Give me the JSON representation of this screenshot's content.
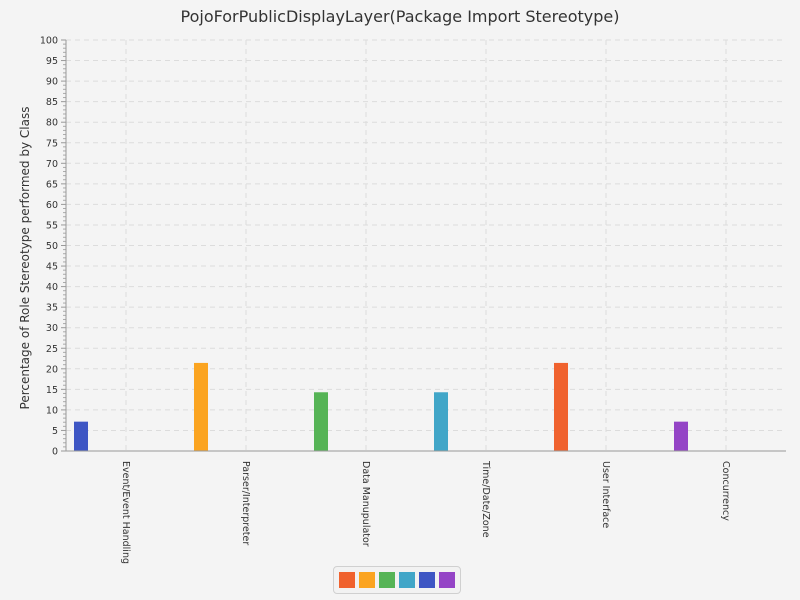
{
  "chart_data": {
    "type": "bar",
    "title": "PojoForPublicDisplayLayer(Package Import Stereotype)",
    "xlabel": "",
    "ylabel": "Percentage of Role Stereotype performed by Class",
    "ylim": [
      0,
      100
    ],
    "yticks": [
      0,
      5,
      10,
      15,
      20,
      25,
      30,
      35,
      40,
      45,
      50,
      55,
      60,
      65,
      70,
      75,
      80,
      85,
      90,
      95,
      100
    ],
    "categories": [
      "Event/Event Handling",
      "Parser/Interpreter",
      "Data Manupulator",
      "Time/Date/Zone",
      "User Interface",
      "Concurrency"
    ],
    "series": [
      {
        "color": "#f0622e",
        "values": [
          0,
          0,
          0,
          0,
          21.43,
          0
        ]
      },
      {
        "color": "#fba420",
        "values": [
          0,
          21.43,
          0,
          0,
          0,
          0
        ]
      },
      {
        "color": "#56b456",
        "values": [
          0,
          0,
          14.29,
          0,
          0,
          0
        ]
      },
      {
        "color": "#41a6c8",
        "values": [
          0,
          0,
          0,
          14.29,
          0,
          0
        ]
      },
      {
        "color": "#3e56c4",
        "values": [
          7.14,
          0,
          0,
          0,
          0,
          0
        ]
      },
      {
        "color": "#9444c6",
        "values": [
          0,
          0,
          0,
          0,
          0,
          7.14
        ]
      }
    ],
    "grid": true,
    "legend": "bottom-center"
  }
}
